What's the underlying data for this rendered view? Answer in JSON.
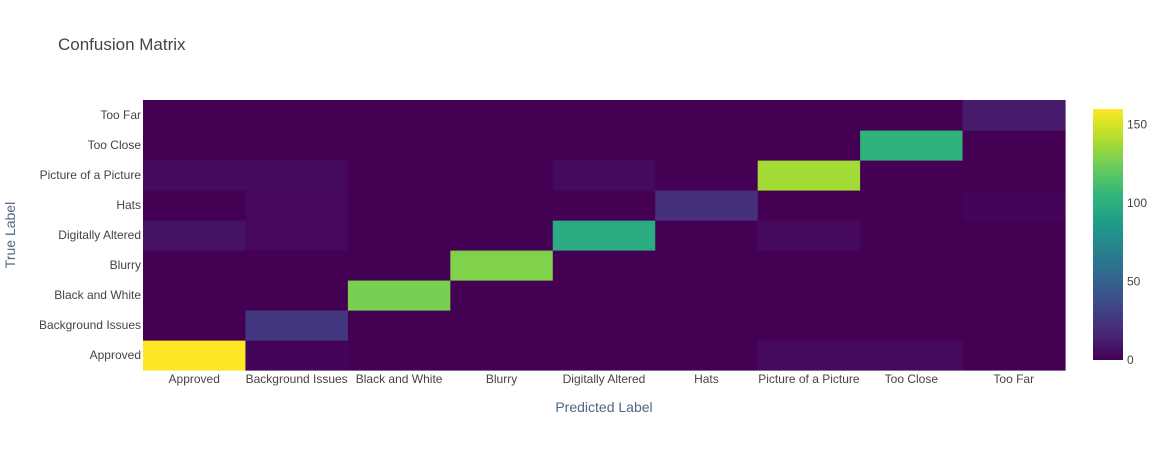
{
  "chart_data": {
    "type": "heatmap",
    "title": "Confusion Matrix",
    "xlabel": "Predicted Label",
    "ylabel": "True Label",
    "x_categories": [
      "Approved",
      "Background Issues",
      "Black and White",
      "Blurry",
      "Digitally Altered",
      "Hats",
      "Picture of a Picture",
      "Too Close",
      "Too Far"
    ],
    "y_categories": [
      "Approved",
      "Background Issues",
      "Black and White",
      "Blurry",
      "Digitally Altered",
      "Hats",
      "Picture of a Picture",
      "Too Close",
      "Too Far"
    ],
    "z": [
      [
        160,
        2,
        0,
        0,
        0,
        0,
        4,
        4,
        0
      ],
      [
        0,
        26,
        0,
        0,
        0,
        0,
        0,
        0,
        0
      ],
      [
        0,
        0,
        127,
        0,
        0,
        0,
        0,
        0,
        0
      ],
      [
        0,
        0,
        0,
        129,
        0,
        0,
        0,
        0,
        0
      ],
      [
        8,
        3,
        0,
        0,
        98,
        0,
        4,
        0,
        0
      ],
      [
        0,
        3,
        0,
        0,
        0,
        22,
        0,
        0,
        2
      ],
      [
        4,
        4,
        0,
        0,
        4,
        0,
        138,
        0,
        0
      ],
      [
        0,
        0,
        0,
        0,
        0,
        0,
        0,
        103,
        0
      ],
      [
        0,
        0,
        0,
        0,
        0,
        0,
        0,
        0,
        12
      ]
    ],
    "colorscale": "Viridis",
    "zrange": [
      0,
      160
    ],
    "colorbar_ticks": [
      0,
      50,
      100,
      150
    ]
  }
}
